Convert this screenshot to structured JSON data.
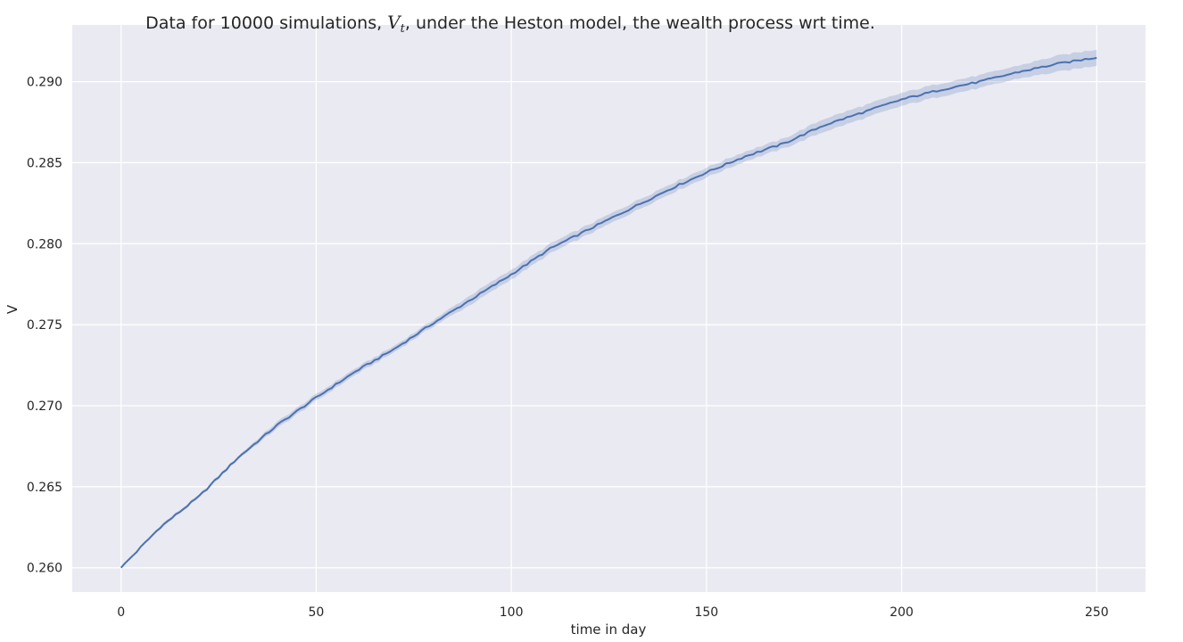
{
  "chart_data": {
    "type": "line",
    "title_parts": {
      "before": "Data for 10000 simulations, ",
      "math_var": "V",
      "math_sub": "t",
      "after": ", under the Heston model, the wealth process wrt time."
    },
    "xlabel": "time in day",
    "ylabel": "V",
    "xlim": [
      -12.5,
      262.5
    ],
    "ylim": [
      0.2585,
      0.2935
    ],
    "xticks": [
      0,
      50,
      100,
      150,
      200,
      250
    ],
    "xtick_labels": [
      "0",
      "50",
      "100",
      "150",
      "200",
      "250"
    ],
    "yticks": [
      0.26,
      0.265,
      0.27,
      0.275,
      0.28,
      0.285,
      0.29
    ],
    "ytick_labels": [
      "0.260",
      "0.265",
      "0.270",
      "0.275",
      "0.280",
      "0.285",
      "0.290"
    ],
    "grid": true,
    "background_color": "#eaeaf2",
    "grid_color": "#ffffff",
    "series": [
      {
        "line_color": "#4c72b0",
        "band_color": "#4c72b0",
        "x": [
          0,
          10,
          20,
          30,
          40,
          50,
          60,
          70,
          80,
          90,
          100,
          110,
          120,
          130,
          140,
          150,
          160,
          170,
          180,
          190,
          200,
          210,
          220,
          230,
          240,
          250
        ],
        "y": [
          0.26,
          0.2625,
          0.2644,
          0.2668,
          0.2688,
          0.2705,
          0.2721,
          0.2735,
          0.2751,
          0.2766,
          0.2781,
          0.2797,
          0.2809,
          0.2821,
          0.2833,
          0.2844,
          0.2854,
          0.2862,
          0.2873,
          0.2881,
          0.2889,
          0.2895,
          0.29,
          0.2906,
          0.2911,
          0.2915
        ],
        "ci_halfwidth": [
          0.0,
          0.0001,
          0.0001,
          0.0001,
          0.0002,
          0.0002,
          0.0002,
          0.0002,
          0.0002,
          0.0003,
          0.0003,
          0.0003,
          0.0003,
          0.0003,
          0.0003,
          0.0003,
          0.0003,
          0.0003,
          0.0004,
          0.0004,
          0.0004,
          0.0004,
          0.0004,
          0.0004,
          0.0005,
          0.0005
        ]
      }
    ]
  }
}
